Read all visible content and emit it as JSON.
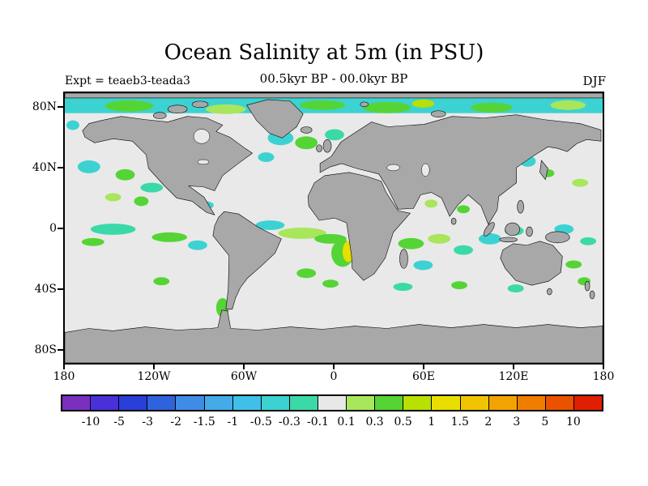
{
  "header": {
    "title": "Ocean Salinity at 5m (in PSU)",
    "subtitle": "00.5kyr BP - 00.0kyr BP",
    "experiment_label": "Expt = teaeb3-teada3",
    "season_label": "DJF"
  },
  "axes": {
    "lat_ticks": [
      "80N",
      "40N",
      "0",
      "40S",
      "80S"
    ],
    "lon_ticks": [
      "180",
      "120W",
      "60W",
      "0",
      "60E",
      "120E",
      "180"
    ]
  },
  "colorbar": {
    "tick_labels": [
      "-10",
      "-5",
      "-3",
      "-2",
      "-1.5",
      "-1",
      "-0.5",
      "-0.3",
      "-0.1",
      "0.1",
      "0.3",
      "0.5",
      "1",
      "1.5",
      "2",
      "3",
      "5",
      "10"
    ],
    "segment_colors": [
      "#7a2fbf",
      "#4a30d9",
      "#2a3fd9",
      "#2f62dd",
      "#3f8ce6",
      "#44aae8",
      "#3fc0e8",
      "#3cd2d2",
      "#3bd9a8",
      "#e8e8e8",
      "#a8e65c",
      "#55d435",
      "#b8e000",
      "#e8df00",
      "#f0c400",
      "#f2a300",
      "#f07d00",
      "#ea5200",
      "#e01f00"
    ]
  },
  "colors": {
    "land": "#a8a8a8",
    "ocean_near_zero": "#e9e9e9",
    "background": "#ffffff"
  },
  "chart_data": {
    "type": "heatmap",
    "title": "Ocean Salinity at 5m (in PSU)",
    "subtitle": "00.5kyr BP - 00.0kyr BP",
    "experiment": "teaeb3-teada3",
    "season": "DJF",
    "variable": "Ocean salinity difference at 5m depth",
    "units": "PSU",
    "projection": "equirectangular world map, lon -180..180, lat -90..90",
    "lat_axis_ticks": [
      "80N",
      "40N",
      "0",
      "40S",
      "80S"
    ],
    "lon_axis_ticks": [
      "180",
      "120W",
      "60W",
      "0",
      "60E",
      "120E",
      "180"
    ],
    "contour_levels": [
      -10,
      -5,
      -3,
      -2,
      -1.5,
      -1,
      -0.5,
      -0.3,
      -0.1,
      0.1,
      0.3,
      0.5,
      1,
      1.5,
      2,
      3,
      5,
      10
    ],
    "level_colors": [
      "#7a2fbf",
      "#4a30d9",
      "#2a3fd9",
      "#2f62dd",
      "#3f8ce6",
      "#44aae8",
      "#3fc0e8",
      "#3cd2d2",
      "#3bd9a8",
      "#e8e8e8",
      "#a8e65c",
      "#55d435",
      "#b8e000",
      "#e8df00",
      "#f0c400",
      "#f2a300",
      "#f07d00",
      "#ea5200",
      "#e01f00"
    ],
    "land_mask_color": "#a8a8a8",
    "near_zero_color": "#e9e9e9",
    "notable_features": [
      "Most of the global ocean lies within -0.1..0.1 PSU (light gray)",
      "Arctic Ocean ringed by a band of -0.5..-0.3 PSU (cyan/teal) with scattered +0.1..+0.5 PSU (green) patches",
      "North Atlantic near Greenland/Iceland: mixed cyan and green patches",
      "North Pacific: scattered cyan and green patches near the dateline and Sea of Okhotsk",
      "Equatorial Pacific and Atlantic: teal/green streaks around 0..10S",
      "Benguela region off southwest Africa: positive anomaly up to ~+1.5..2 PSU (yellow core in green patch)",
      "Indian Ocean and Indonesian seas: scattered green and teal patches",
      "Small green/teal patches along ~40S and near the Antarctic Peninsula"
    ],
    "legend_position": "horizontal colorbar at bottom",
    "grid": false
  }
}
